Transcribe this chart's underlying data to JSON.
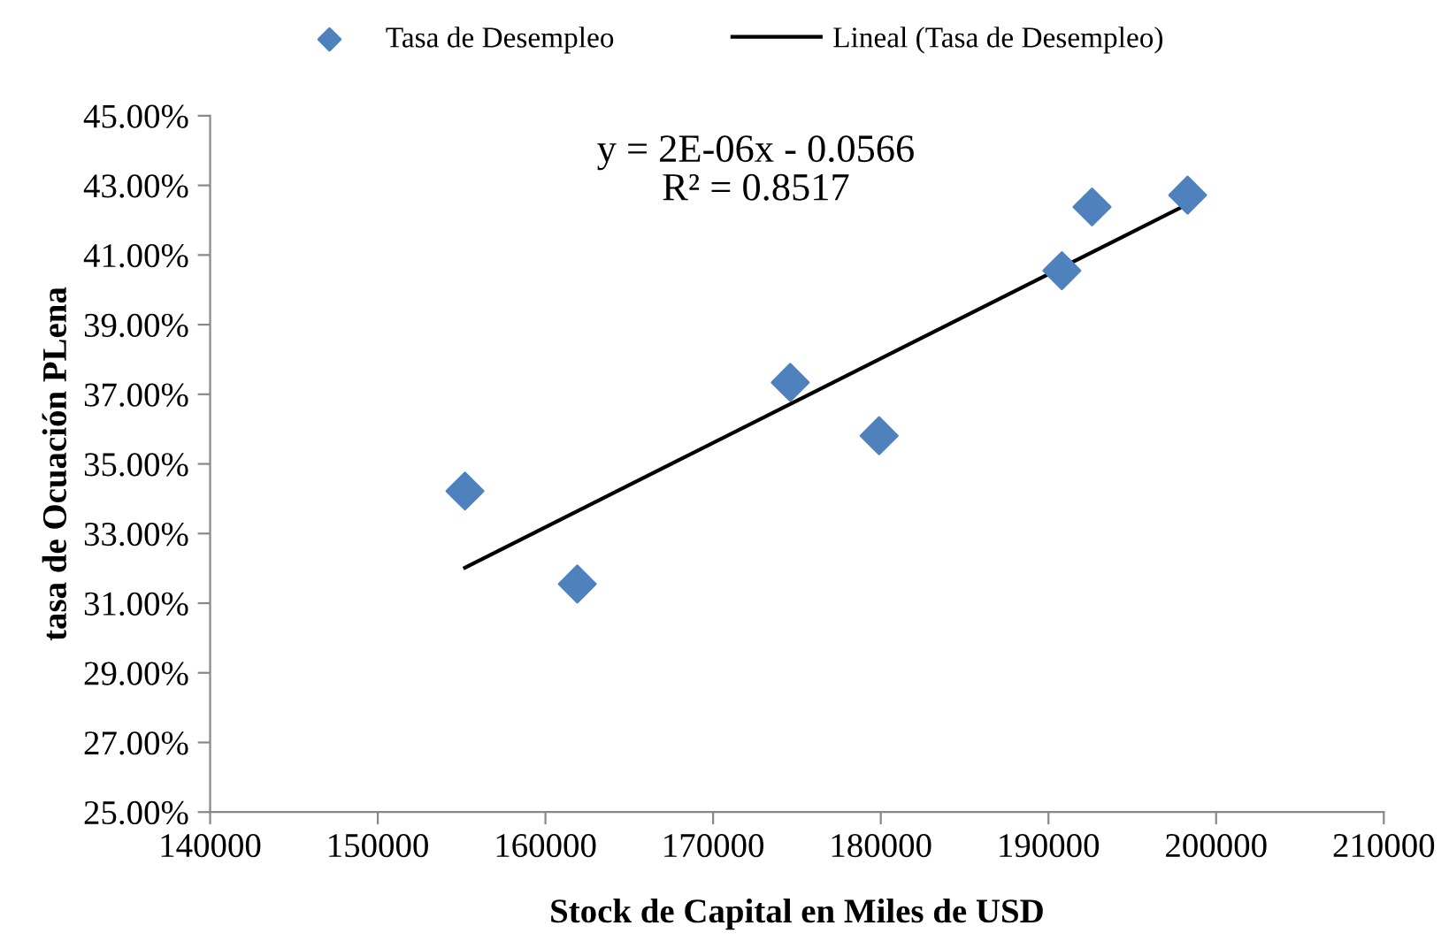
{
  "chart_data": {
    "type": "scatter",
    "xlabel": "Stock de Capital en Miles de USD",
    "ylabel": "tasa de Ocuación PLena",
    "series": [
      {
        "name": "Tasa de Desempleo",
        "color": "#4f81bd",
        "marker": "diamond",
        "x": [
          155200,
          161900,
          174600,
          179900,
          190800,
          192600,
          198300
        ],
        "values": [
          34.22,
          31.55,
          37.34,
          35.81,
          40.55,
          42.38,
          42.72
        ]
      },
      {
        "name": "Lineal (Tasa de Desempleo)",
        "type": "line",
        "color": "#000000",
        "line_style": "solid",
        "marker": "none",
        "x": [
          155200,
          198300
        ],
        "values": [
          32.02,
          42.46
        ]
      }
    ],
    "annotations": [
      "y = 2E-06x - 0.0566",
      "R² = 0.8517"
    ],
    "xlim": [
      140000,
      210000
    ],
    "xticks": [
      140000,
      150000,
      160000,
      170000,
      180000,
      190000,
      200000,
      210000
    ],
    "ylim": [
      25,
      45
    ],
    "yticks": [
      {
        "value": 25,
        "label": "25.00%"
      },
      {
        "value": 27,
        "label": "27.00%"
      },
      {
        "value": 29,
        "label": "29.00%"
      },
      {
        "value": 31,
        "label": "31.00%"
      },
      {
        "value": 33,
        "label": "33.00%"
      },
      {
        "value": 35,
        "label": "35.00%"
      },
      {
        "value": 37,
        "label": "37.00%"
      },
      {
        "value": 39,
        "label": "39.00%"
      },
      {
        "value": 41,
        "label": "41.00%"
      },
      {
        "value": 43,
        "label": "43.00%"
      },
      {
        "value": 45,
        "label": "45.00%"
      }
    ],
    "grid": false,
    "legend": "top"
  }
}
